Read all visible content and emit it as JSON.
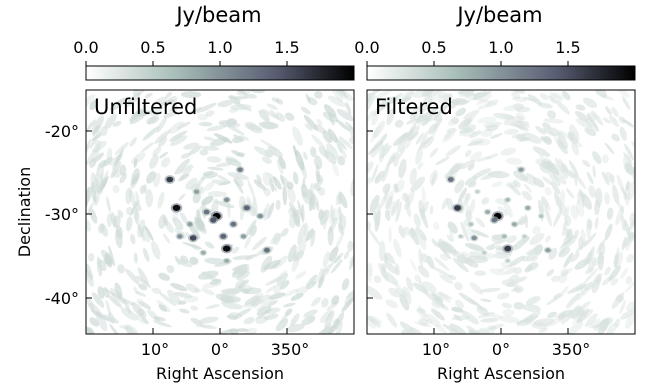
{
  "chart_data": [
    {
      "type": "heatmap",
      "title": "Unfiltered",
      "colorbar": {
        "label": "Jy/beam",
        "ticks": [
          "0.0",
          "0.5",
          "1.0",
          "1.5"
        ],
        "range": [
          0,
          2.0
        ],
        "colors": [
          "#ffffff",
          "#a9bfb9",
          "#5a5f74",
          "#000000"
        ]
      },
      "xlabel": "Right Ascension",
      "ylabel": "Declination",
      "xticks": [
        "10°",
        "0°",
        "350°"
      ],
      "yticks": [
        "-20°",
        "-30°",
        "-40°"
      ],
      "xlim": [
        20,
        -20
      ],
      "ylim": [
        -44.5,
        -14.5
      ],
      "background_level": 0.15,
      "sources": [
        {
          "ra": 7.5,
          "dec": -25.5,
          "flux": 1.6
        },
        {
          "ra": 6.5,
          "dec": -29.0,
          "flux": 1.9
        },
        {
          "ra": 3.5,
          "dec": -27.0,
          "flux": 0.9
        },
        {
          "ra": 2.0,
          "dec": -29.5,
          "flux": 1.2
        },
        {
          "ra": 4.5,
          "dec": -31.0,
          "flux": 0.9
        },
        {
          "ra": 4.0,
          "dec": -32.7,
          "flux": 1.5
        },
        {
          "ra": 6.0,
          "dec": -32.5,
          "flux": 1.0
        },
        {
          "ra": 0.5,
          "dec": -30.0,
          "flux": 2.0
        },
        {
          "ra": 1.0,
          "dec": -30.5,
          "flux": 1.4
        },
        {
          "ra": -1.0,
          "dec": -28.0,
          "flux": 1.0
        },
        {
          "ra": -2.0,
          "dec": -31.0,
          "flux": 1.2
        },
        {
          "ra": -0.5,
          "dec": -32.5,
          "flux": 1.3
        },
        {
          "ra": -1.0,
          "dec": -34.0,
          "flux": 1.9
        },
        {
          "ra": -3.0,
          "dec": -24.3,
          "flux": 1.1
        },
        {
          "ra": -4.0,
          "dec": -29.0,
          "flux": 1.3
        },
        {
          "ra": -6.0,
          "dec": -30.0,
          "flux": 1.0
        },
        {
          "ra": -3.5,
          "dec": -32.5,
          "flux": 0.9
        },
        {
          "ra": -7.0,
          "dec": -34.2,
          "flux": 1.2
        },
        {
          "ra": 2.5,
          "dec": -34.5,
          "flux": 0.8
        },
        {
          "ra": -1.0,
          "dec": -35.5,
          "flux": 0.8
        }
      ]
    },
    {
      "type": "heatmap",
      "title": "Filtered",
      "colorbar": {
        "label": "Jy/beam",
        "ticks": [
          "0.0",
          "0.5",
          "1.0",
          "1.5"
        ],
        "range": [
          0,
          2.0
        ],
        "colors": [
          "#ffffff",
          "#a9bfb9",
          "#5a5f74",
          "#000000"
        ]
      },
      "xlabel": "Right Ascension",
      "ylabel": "",
      "xticks": [
        "10°",
        "0°",
        "350°"
      ],
      "yticks": [],
      "xlim": [
        20,
        -20
      ],
      "ylim": [
        -44.5,
        -14.5
      ],
      "background_level": 0.07,
      "sources": [
        {
          "ra": 7.5,
          "dec": -25.5,
          "flux": 1.2
        },
        {
          "ra": 6.5,
          "dec": -29.0,
          "flux": 1.6
        },
        {
          "ra": 3.5,
          "dec": -27.0,
          "flux": 0.5
        },
        {
          "ra": 2.0,
          "dec": -29.5,
          "flux": 0.8
        },
        {
          "ra": 4.5,
          "dec": -31.0,
          "flux": 0.6
        },
        {
          "ra": 4.0,
          "dec": -32.7,
          "flux": 1.0
        },
        {
          "ra": 6.0,
          "dec": -32.5,
          "flux": 0.5
        },
        {
          "ra": 0.5,
          "dec": -30.0,
          "flux": 2.0
        },
        {
          "ra": 1.0,
          "dec": -30.5,
          "flux": 1.2
        },
        {
          "ra": -1.0,
          "dec": -28.0,
          "flux": 0.7
        },
        {
          "ra": -2.0,
          "dec": -31.0,
          "flux": 0.8
        },
        {
          "ra": -0.5,
          "dec": -32.5,
          "flux": 0.7
        },
        {
          "ra": -1.0,
          "dec": -34.0,
          "flux": 1.6
        },
        {
          "ra": -3.0,
          "dec": -24.3,
          "flux": 0.9
        },
        {
          "ra": -4.0,
          "dec": -29.0,
          "flux": 0.8
        },
        {
          "ra": -6.0,
          "dec": -30.0,
          "flux": 0.6
        },
        {
          "ra": -3.5,
          "dec": -32.5,
          "flux": 0.5
        },
        {
          "ra": -7.0,
          "dec": -34.2,
          "flux": 0.9
        },
        {
          "ra": 2.5,
          "dec": -34.5,
          "flux": 0.5
        },
        {
          "ra": -1.0,
          "dec": -35.5,
          "flux": 0.5
        }
      ]
    }
  ]
}
